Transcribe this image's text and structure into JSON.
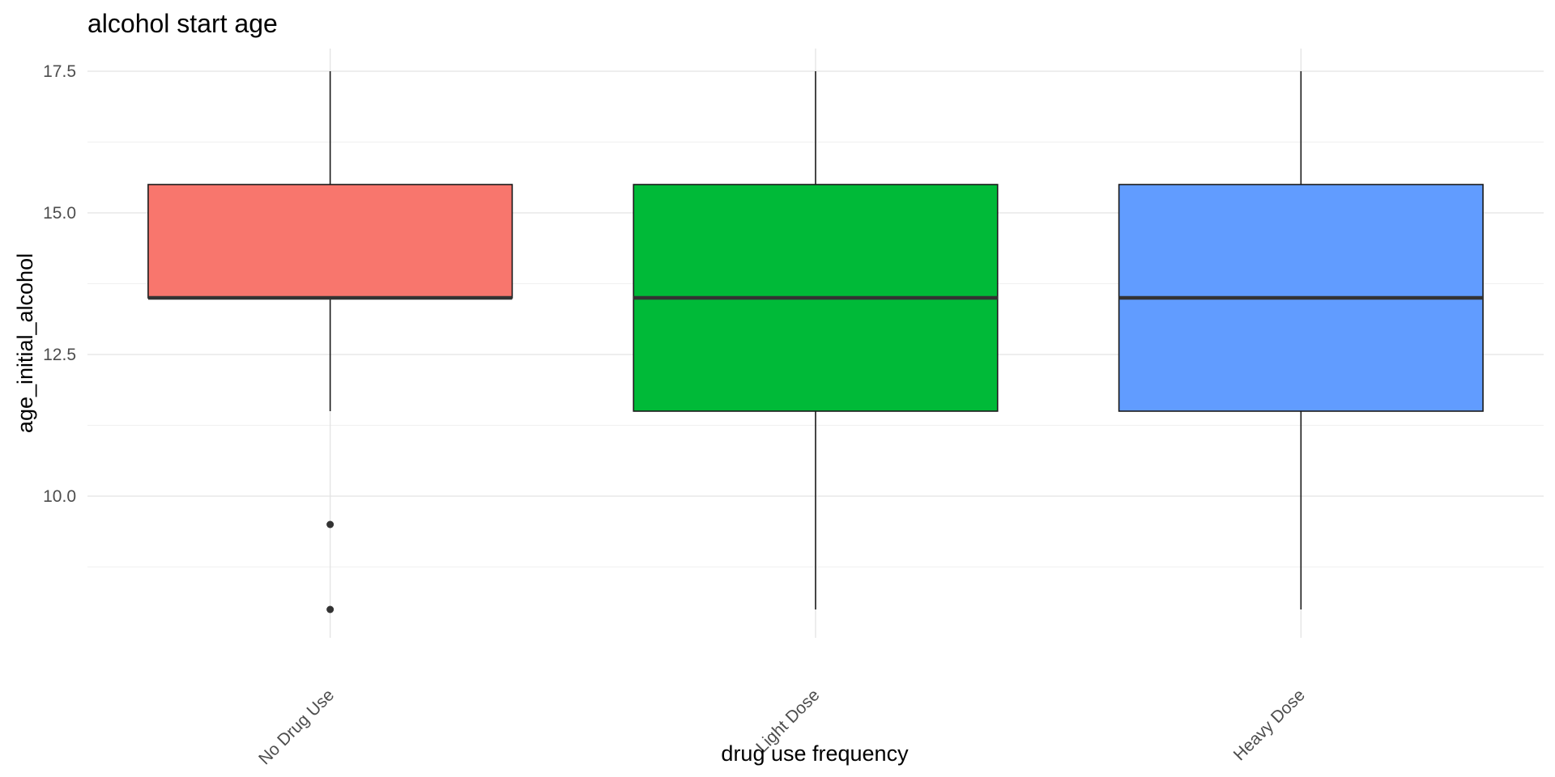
{
  "chart_data": {
    "type": "box",
    "title": "alcohol start age",
    "xlabel": "drug use frequency",
    "ylabel": "age_initial_alcohol",
    "categories": [
      "No Drug Use",
      "Light Dose",
      "Heavy Dose"
    ],
    "ylim": [
      7.5,
      17.9
    ],
    "yticks": [
      "10.0",
      "12.5",
      "15.0",
      "17.5"
    ],
    "ytick_values": [
      10.0,
      12.5,
      15.0,
      17.5
    ],
    "grid": true,
    "legend": "none",
    "x_tick_rotation_deg": 45,
    "boxes": [
      {
        "category": "No Drug Use",
        "whisker_low": 11.5,
        "q1": 13.5,
        "median": 13.5,
        "q3": 15.5,
        "whisker_high": 17.5,
        "outliers": [
          9.5,
          8.0
        ],
        "fill": "#F8766D"
      },
      {
        "category": "Light Dose",
        "whisker_low": 8.0,
        "q1": 11.5,
        "median": 13.5,
        "q3": 15.5,
        "whisker_high": 17.5,
        "outliers": [],
        "fill": "#00BA38"
      },
      {
        "category": "Heavy Dose",
        "whisker_low": 8.0,
        "q1": 11.5,
        "median": 13.5,
        "q3": 15.5,
        "whisker_high": 17.5,
        "outliers": [],
        "fill": "#619CFF"
      }
    ],
    "colors": {
      "grid_major": "#e3e3e3",
      "grid_minor": "#f0f0f0",
      "box_outline": "#1a1a1a",
      "median_line": "#333333"
    }
  }
}
